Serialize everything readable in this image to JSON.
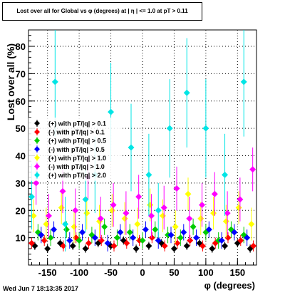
{
  "title": "Lost over all for Global vs φ (degrees) at | η | <= 1.0 at pT > 0.11",
  "timestamp": "Wed Jun  7 18:13:35 2017",
  "chart_data": {
    "type": "scatter",
    "title": "Lost over all for Global vs φ (degrees) at | η | <= 1.0 at pT > 0.11",
    "xlabel": "φ (degrees)",
    "ylabel": "Lost over all (%)",
    "xlim": [
      -180,
      180
    ],
    "ylim": [
      0,
      86
    ],
    "xticks": [
      -150,
      -100,
      -50,
      0,
      50,
      100,
      150
    ],
    "yticks": [
      10,
      20,
      30,
      40,
      50,
      60,
      70,
      80
    ],
    "grid": true,
    "legend_position": "middle-left",
    "series": [
      {
        "name": "(+) with pT/|q| > 0.1",
        "color": "#000000",
        "x": [
          -170,
          -150,
          -130,
          -110,
          -90,
          -70,
          -50,
          -30,
          -10,
          10,
          30,
          50,
          70,
          90,
          110,
          130,
          150,
          170
        ],
        "y": [
          7,
          6,
          8,
          7,
          6,
          8,
          7,
          9,
          6,
          7,
          8,
          6,
          7,
          8,
          6,
          7,
          8,
          6
        ],
        "yerr": [
          1.5,
          1.5,
          1.5,
          1.5,
          1.5,
          1.5,
          1.5,
          1.5,
          1.5,
          1.5,
          1.5,
          1.5,
          1.5,
          1.5,
          1.5,
          1.5,
          1.5,
          1.5
        ]
      },
      {
        "name": "(-) with pT/|q| > 0.1",
        "color": "#ff0000",
        "x": [
          -175,
          -155,
          -125,
          -105,
          -85,
          -65,
          -45,
          -25,
          -5,
          15,
          35,
          55,
          75,
          95,
          115,
          135,
          155,
          175
        ],
        "y": [
          8,
          9,
          7,
          10,
          8,
          9,
          7,
          8,
          9,
          10,
          7,
          8,
          9,
          7,
          8,
          10,
          9,
          7
        ],
        "yerr": [
          2,
          2,
          2,
          2,
          2,
          2,
          2,
          2,
          2,
          2,
          2,
          2,
          2,
          2,
          2,
          2,
          2,
          2
        ]
      },
      {
        "name": "(+) with pT/|q| > 0.5",
        "color": "#00cc00",
        "x": [
          -165,
          -145,
          -120,
          -100,
          -80,
          -60,
          -40,
          -20,
          0,
          20,
          40,
          60,
          80,
          100,
          120,
          140,
          160
        ],
        "y": [
          12,
          10,
          13,
          9,
          11,
          14,
          10,
          12,
          9,
          13,
          11,
          10,
          14,
          12,
          9,
          13,
          11
        ],
        "yerr": [
          3,
          3,
          3,
          3,
          3,
          3,
          3,
          3,
          3,
          3,
          3,
          3,
          3,
          3,
          3,
          3,
          3
        ]
      },
      {
        "name": "(-) with pT/|q| > 0.5",
        "color": "#0000ff",
        "x": [
          -160,
          -140,
          -115,
          -95,
          -75,
          -55,
          -35,
          -15,
          5,
          25,
          45,
          65,
          85,
          105,
          125,
          145,
          165
        ],
        "y": [
          11,
          13,
          9,
          12,
          10,
          8,
          12,
          10,
          13,
          9,
          11,
          12,
          10,
          13,
          9,
          12,
          10
        ],
        "yerr": [
          3,
          3,
          3,
          3,
          3,
          3,
          3,
          3,
          3,
          3,
          3,
          3,
          3,
          3,
          3,
          3,
          3
        ]
      },
      {
        "name": "(+) with pT/|q| > 1.0",
        "color": "#ffff00",
        "x": [
          -172,
          -152,
          -128,
          -108,
          -88,
          -68,
          -48,
          -28,
          -8,
          12,
          32,
          52,
          72,
          92,
          112,
          132,
          152,
          172
        ],
        "y": [
          18,
          15,
          21,
          14,
          19,
          16,
          20,
          17,
          15,
          22,
          18,
          14,
          26,
          17,
          19,
          16,
          21,
          15
        ],
        "yerr": [
          6,
          6,
          6,
          6,
          6,
          6,
          6,
          6,
          6,
          6,
          6,
          6,
          6,
          6,
          6,
          6,
          6,
          6
        ]
      },
      {
        "name": "(-) with pT/|q| > 1.0",
        "color": "#ff00ff",
        "x": [
          -168,
          -148,
          -126,
          -106,
          -86,
          -66,
          -46,
          -26,
          -6,
          14,
          34,
          54,
          74,
          94,
          114,
          134,
          154,
          174
        ],
        "y": [
          30,
          18,
          27,
          20,
          32,
          17,
          22,
          19,
          25,
          18,
          21,
          28,
          17,
          22,
          26,
          19,
          24,
          35
        ],
        "yerr": [
          8,
          8,
          8,
          8,
          8,
          8,
          8,
          8,
          8,
          8,
          8,
          8,
          8,
          8,
          8,
          8,
          8,
          8
        ]
      },
      {
        "name": "(+) with pT/|q| > 2.0",
        "color": "#00e5e5",
        "x": [
          -175,
          -138,
          -122,
          -90,
          -75,
          -50,
          -18,
          10,
          25,
          43,
          70,
          100,
          130,
          160
        ],
        "y": [
          25,
          67,
          15,
          24,
          33,
          56,
          43,
          33,
          20,
          50,
          63,
          50,
          33,
          67
        ],
        "yerr": [
          12,
          20,
          10,
          12,
          14,
          18,
          16,
          15,
          10,
          18,
          20,
          18,
          15,
          20
        ]
      }
    ]
  }
}
